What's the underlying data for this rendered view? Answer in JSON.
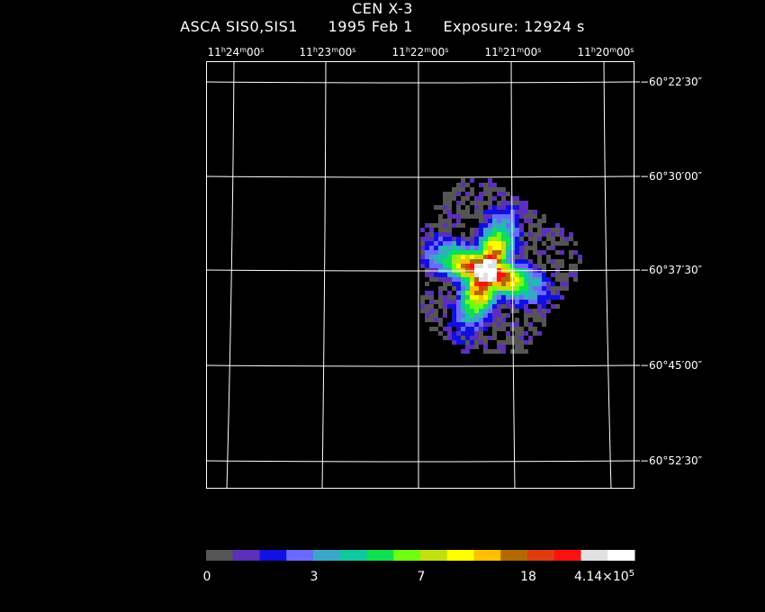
{
  "header": {
    "title": "CEN X-3",
    "instrument": "ASCA SIS0,SIS1",
    "date": "1995 Feb  1",
    "exposure": "Exposure: 12924 s"
  },
  "axes": {
    "ra_ticks": [
      {
        "h": "11",
        "m": "24",
        "s": "00"
      },
      {
        "h": "11",
        "m": "23",
        "s": "00"
      },
      {
        "h": "11",
        "m": "22",
        "s": "00"
      },
      {
        "h": "11",
        "m": "21",
        "s": "00"
      },
      {
        "h": "11",
        "m": "20",
        "s": "00"
      }
    ],
    "dec_ticks": [
      "−60°22′30″",
      "−60°30′00″",
      "−60°37′30″",
      "−60°45′00″",
      "−60°52′30″"
    ]
  },
  "colorbar": {
    "colors": [
      "#555555",
      "#5b2fb8",
      "#1010e0",
      "#6a6aff",
      "#3aa6c8",
      "#10c8a0",
      "#10e050",
      "#70ff10",
      "#c0e010",
      "#ffff00",
      "#ffc000",
      "#b06a00",
      "#e03a10",
      "#ff1010",
      "#e0e0e0",
      "#ffffff"
    ],
    "labels": [
      "0",
      "3",
      "7",
      "18"
    ],
    "max_label": "4.14×10",
    "max_exp": "5"
  }
}
